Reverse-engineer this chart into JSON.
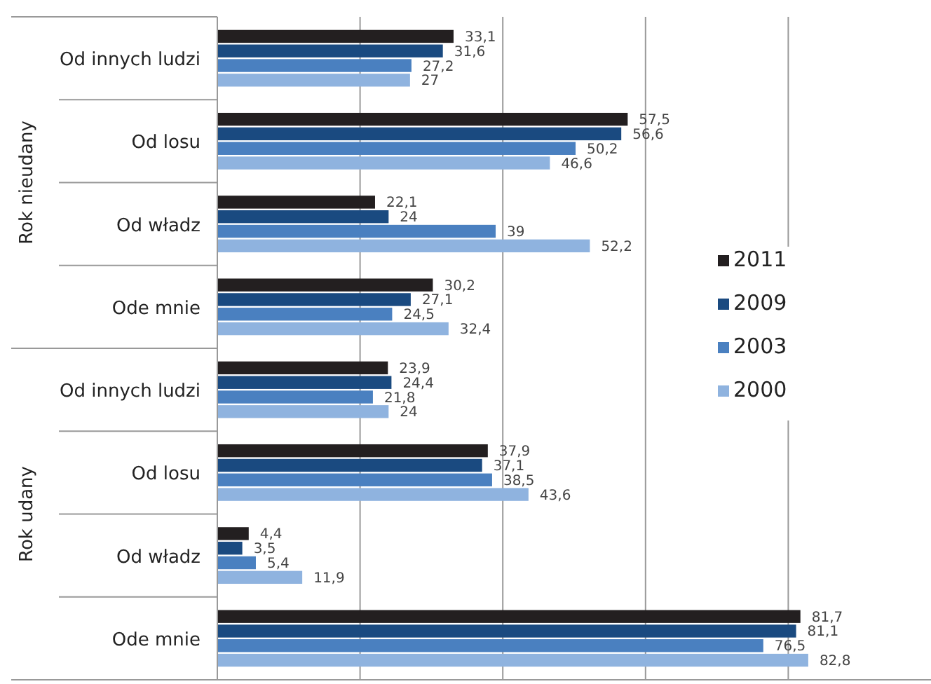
{
  "chart_data": {
    "type": "bar",
    "orientation": "horizontal",
    "categories": [
      "Od innych ludzi",
      "Od losu",
      "Od władz",
      "Ode mnie",
      "Od innych ludzi",
      "Od losu",
      "Od władz",
      "Ode mnie"
    ],
    "annotations": [
      "Rok nieudany",
      "Rok udany"
    ],
    "series": [
      {
        "name": "2011",
        "color": "#231f20",
        "values": [
          33.1,
          57.5,
          22.1,
          30.2,
          23.9,
          37.9,
          4.4,
          81.7
        ],
        "value_labels": [
          "33,1",
          "57,5",
          "22,1",
          "30,2",
          "23,9",
          "37,9",
          "4,4",
          "81,7"
        ]
      },
      {
        "name": "2009",
        "color": "#1a4a80",
        "values": [
          31.6,
          56.6,
          24,
          27.1,
          24.4,
          37.1,
          3.5,
          81.1
        ],
        "value_labels": [
          "31,6",
          "56,6",
          "24",
          "27,1",
          "24,4",
          "37,1",
          "3,5",
          "81,1"
        ]
      },
      {
        "name": "2003",
        "color": "#4a80c0",
        "values": [
          27.2,
          50.2,
          39,
          24.5,
          21.8,
          38.5,
          5.4,
          76.5
        ],
        "value_labels": [
          "27,2",
          "50,2",
          "39",
          "24,5",
          "21,8",
          "38,5",
          "5,4",
          "76,5"
        ]
      },
      {
        "name": "2000",
        "color": "#8fb3df",
        "values": [
          27,
          46.6,
          52.2,
          32.4,
          24,
          43.6,
          11.9,
          82.8
        ],
        "value_labels": [
          "27",
          "46,6",
          "52,2",
          "32,4",
          "24",
          "43,6",
          "11,9",
          "82,8"
        ]
      }
    ],
    "xlim": [
      0,
      100
    ],
    "xticks": [
      {
        "value": 0,
        "label": null
      },
      {
        "value": 20,
        "label": null
      },
      {
        "value": 40,
        "label": null
      },
      {
        "value": 60,
        "label": null
      },
      {
        "value": 80,
        "label": null
      }
    ],
    "grid": "x",
    "legend": "right"
  }
}
